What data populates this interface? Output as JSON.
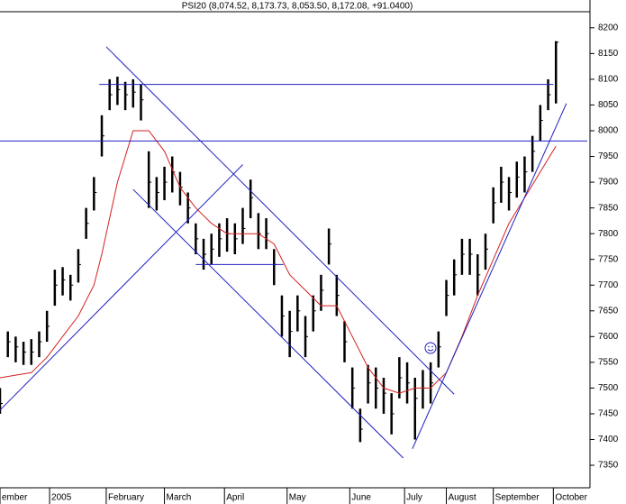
{
  "chart_data": {
    "type": "ohlc",
    "title": "PSI20 (8,074.52, 8,173.73, 8,053.50, 8,172.08, +91.0400)",
    "x": [
      0,
      3,
      6,
      9,
      12,
      15,
      18,
      21,
      24,
      27,
      30,
      33,
      36,
      39,
      42,
      45,
      48,
      51,
      54,
      57,
      60,
      63,
      66,
      69,
      72,
      75,
      78,
      81,
      84,
      87,
      90,
      93,
      96,
      99,
      102,
      105,
      108,
      111,
      114,
      117,
      120,
      123,
      126,
      129,
      132,
      135,
      138,
      141,
      144,
      147,
      150,
      153,
      156,
      159,
      162,
      165,
      168,
      171,
      174,
      177,
      180,
      183,
      186,
      189,
      192,
      195,
      198,
      201,
      204,
      207,
      210,
      213
    ],
    "close": [
      7470,
      7590,
      7580,
      7570,
      7570,
      7590,
      7620,
      7700,
      7710,
      7700,
      7740,
      7820,
      7880,
      7990,
      8070,
      8080,
      8070,
      8075,
      8060,
      7900,
      7880,
      7900,
      7920,
      7890,
      7850,
      7790,
      7760,
      7770,
      7790,
      7800,
      7790,
      7810,
      7870,
      7800,
      7800,
      7740,
      7640,
      7610,
      7650,
      7600,
      7650,
      7690,
      7780,
      7680,
      7590,
      7500,
      7420,
      7510,
      7500,
      7490,
      7450,
      7520,
      7510,
      7480,
      7500,
      7510,
      7580,
      7680,
      7720,
      7760,
      7760,
      7720,
      7770,
      7860,
      7900,
      7880,
      7910,
      7920,
      7960,
      8020,
      8070,
      8172
    ],
    "high": [
      7500,
      7610,
      7600,
      7590,
      7595,
      7610,
      7650,
      7730,
      7735,
      7720,
      7770,
      7850,
      7910,
      8030,
      8100,
      8105,
      8095,
      8100,
      8090,
      7960,
      7910,
      7930,
      7950,
      7920,
      7880,
      7820,
      7790,
      7800,
      7820,
      7830,
      7820,
      7850,
      7905,
      7840,
      7830,
      7770,
      7680,
      7650,
      7680,
      7640,
      7680,
      7720,
      7810,
      7720,
      7630,
      7540,
      7460,
      7545,
      7540,
      7520,
      7490,
      7560,
      7550,
      7520,
      7535,
      7550,
      7610,
      7710,
      7750,
      7790,
      7790,
      7760,
      7800,
      7890,
      7930,
      7910,
      7940,
      7950,
      7990,
      8050,
      8100,
      8174
    ],
    "low": [
      7450,
      7560,
      7550,
      7545,
      7545,
      7560,
      7590,
      7660,
      7680,
      7670,
      7705,
      7790,
      7845,
      7950,
      8040,
      8050,
      8040,
      8045,
      8020,
      7850,
      7845,
      7865,
      7880,
      7855,
      7820,
      7760,
      7730,
      7740,
      7755,
      7765,
      7760,
      7780,
      7830,
      7770,
      7770,
      7700,
      7600,
      7560,
      7610,
      7560,
      7610,
      7650,
      7740,
      7640,
      7550,
      7460,
      7395,
      7470,
      7460,
      7450,
      7410,
      7480,
      7470,
      7400,
      7460,
      7470,
      7540,
      7640,
      7680,
      7720,
      7720,
      7680,
      7730,
      7820,
      7860,
      7845,
      7870,
      7880,
      7920,
      7980,
      8040,
      8053
    ],
    "ma": {
      "name": "MA",
      "color": "#d42020",
      "x": [
        0,
        6,
        12,
        18,
        24,
        30,
        36,
        39,
        45,
        51,
        57,
        63,
        69,
        75,
        81,
        87,
        93,
        99,
        105,
        111,
        117,
        123,
        129,
        135,
        141,
        147,
        153,
        159,
        165,
        171,
        177,
        183,
        189,
        195,
        201,
        207,
        213
      ],
      "values": [
        7520,
        7525,
        7530,
        7560,
        7600,
        7640,
        7700,
        7760,
        7900,
        8000,
        8000,
        7960,
        7890,
        7850,
        7820,
        7800,
        7800,
        7800,
        7780,
        7720,
        7690,
        7660,
        7660,
        7600,
        7540,
        7500,
        7490,
        7500,
        7500,
        7530,
        7600,
        7680,
        7750,
        7820,
        7870,
        7920,
        7970
      ]
    },
    "lines": [
      {
        "x": [
          38,
          212
        ],
        "y": [
          8090,
          8090
        ]
      },
      {
        "x": [
          0,
          225
        ],
        "y": [
          7980,
          7980
        ]
      },
      {
        "x": [
          40.7,
          174
        ],
        "y": [
          8163,
          7488
        ]
      },
      {
        "x": [
          51,
          154.5
        ],
        "y": [
          7886,
          7364
        ]
      },
      {
        "x": [
          0,
          93
        ],
        "y": [
          7457,
          7934
        ]
      },
      {
        "x": [
          158,
          217
        ],
        "y": [
          7382,
          8053
        ]
      },
      {
        "x": [
          75,
          108.6
        ],
        "y": [
          7740,
          7740
        ]
      }
    ],
    "line_color": "#2020c0",
    "xlim": [
      0,
      225
    ],
    "ylim": [
      7308,
      8254
    ],
    "xticks": [
      {
        "value": 0,
        "label": "ember"
      },
      {
        "value": 19,
        "label": "2005"
      },
      {
        "value": 40.7,
        "label": "February"
      },
      {
        "value": 63,
        "label": "March"
      },
      {
        "value": 86,
        "label": "April"
      },
      {
        "value": 110,
        "label": "May"
      },
      {
        "value": 134,
        "label": "June"
      },
      {
        "value": 155,
        "label": "July"
      },
      {
        "value": 171,
        "label": "August"
      },
      {
        "value": 189,
        "label": "September"
      },
      {
        "value": 212,
        "label": "October"
      }
    ],
    "yticks": [
      7350,
      7400,
      7450,
      7500,
      7550,
      7600,
      7650,
      7700,
      7750,
      7800,
      7850,
      7900,
      7950,
      8000,
      8050,
      8100,
      8150,
      8200
    ]
  }
}
